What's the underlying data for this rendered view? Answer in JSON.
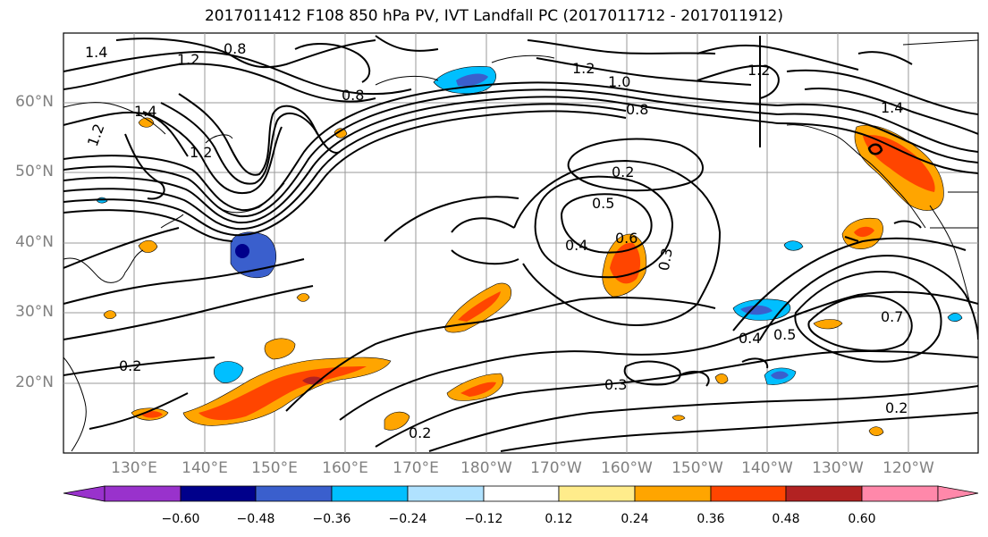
{
  "title": "2017011412 F108 850 hPa PV, IVT Landfall PC (2017011712 - 2017011912)",
  "lat_labels": [
    "60°N",
    "50°N",
    "40°N",
    "30°N",
    "20°N"
  ],
  "lon_labels": [
    "130°E",
    "140°E",
    "150°E",
    "160°E",
    "170°E",
    "180°W",
    "170°W",
    "160°W",
    "150°W",
    "140°W",
    "130°W",
    "120°W"
  ],
  "contour_labels": [
    "1.4",
    "1.2",
    "0.8",
    "1.2",
    "1.4",
    "1.2",
    "0.8",
    "1.2",
    "1.0",
    "0.8",
    "1.2",
    "1.4",
    "0.2",
    "0.5",
    "0.6",
    "0.4",
    "0.3",
    "0.5",
    "0.4",
    "0.7",
    "0.2",
    "0.3",
    "0.2",
    "0.2"
  ],
  "colorbar": {
    "ticks": [
      "−0.60",
      "−0.48",
      "−0.36",
      "−0.24",
      "−0.12",
      "0.12",
      "0.24",
      "0.36",
      "0.48",
      "0.60"
    ],
    "colors": {
      "under": "#9932cc",
      "bins": [
        "#00008b",
        "#3a5fcd",
        "#00bfff",
        "#b0e2ff",
        "#ffffff",
        "#ffec8b",
        "#ffa500",
        "#ff4500",
        "#b22222"
      ],
      "over": "#ff88aa"
    }
  }
}
